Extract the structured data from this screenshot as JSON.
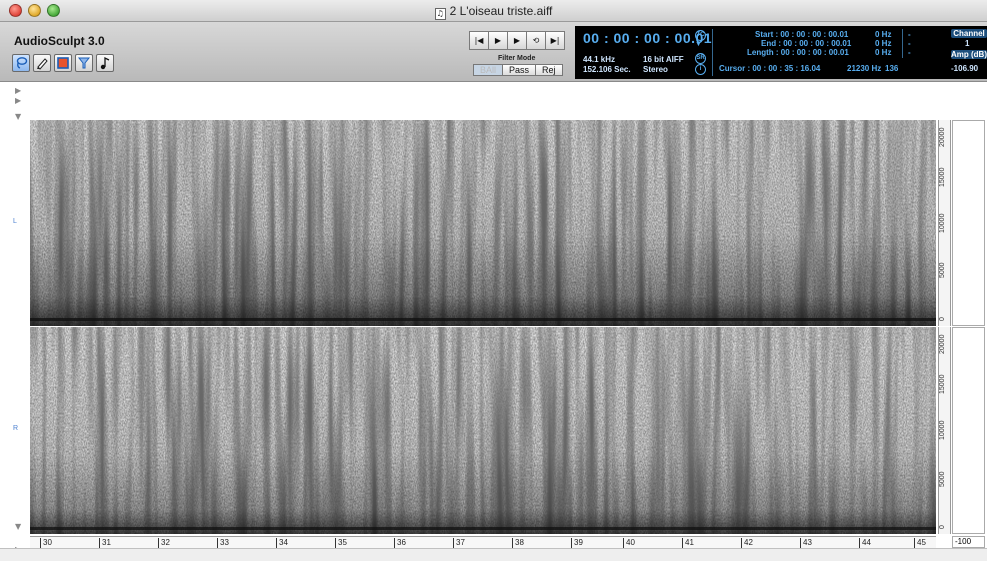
{
  "window": {
    "title": "2 L'oiseau triste.aiff",
    "doc_icon_glyph": "♫"
  },
  "app": {
    "name": "AudioSculpt 3.0"
  },
  "tools": [
    {
      "name": "lasso-tool",
      "icon": "lasso-icon"
    },
    {
      "name": "pencil-tool",
      "icon": "pencil-icon"
    },
    {
      "name": "rectangle-tool",
      "icon": "rectangle-select-icon"
    },
    {
      "name": "filter-tool",
      "icon": "filter-icon"
    },
    {
      "name": "note-tool",
      "icon": "note-icon"
    }
  ],
  "transport": {
    "rewind": "|◀",
    "play": "▶",
    "play_selection": "▶",
    "loop": "⟲",
    "end": "▶|"
  },
  "filter_mode": {
    "label": "Filter Mode",
    "options": [
      "BAll",
      "Pass",
      "Rej"
    ]
  },
  "display": {
    "time": "00 : 00 : 00 : 00.01",
    "tc_badge": "TC",
    "sr_badge": "SR",
    "info_badge": "i",
    "sample_rate": "44.1 kHz",
    "format": "16 bit AIFF",
    "duration": "152.106 Sec.",
    "channels_mode": "Stereo",
    "start": "Start : 00 : 00 : 00 : 00.01",
    "end": "End : 00 : 00 : 00 : 00.01",
    "length": "Length : 00 : 00 : 00 : 00.01",
    "cursor": "Cursor : 00 : 00 : 35 : 16.04",
    "start_hz": "0 Hz",
    "end_hz": "0 Hz",
    "length_hz": "0 Hz",
    "cursor_hz": "21230 Hz",
    "cursor_bin": "136",
    "dash": "-",
    "channel_label": "Channel",
    "channel_value": "1",
    "amp_label": "Amp (dB)",
    "amp_value": "-106.90"
  },
  "channels": {
    "left": "L",
    "right": "R"
  },
  "freq_axis": {
    "ticks": [
      "20000",
      "15000",
      "10000",
      "5000",
      "0"
    ]
  },
  "time_ruler": {
    "ticks": [
      "30",
      "31",
      "32",
      "33",
      "34",
      "35",
      "36",
      "37",
      "38",
      "39",
      "40",
      "41",
      "42",
      "43",
      "44",
      "45"
    ]
  },
  "amp_scale": {
    "value": "-100"
  },
  "colors": {
    "display_bg": "#000000",
    "display_text": "#58aef0",
    "channel_box": "#1d4f7d"
  }
}
